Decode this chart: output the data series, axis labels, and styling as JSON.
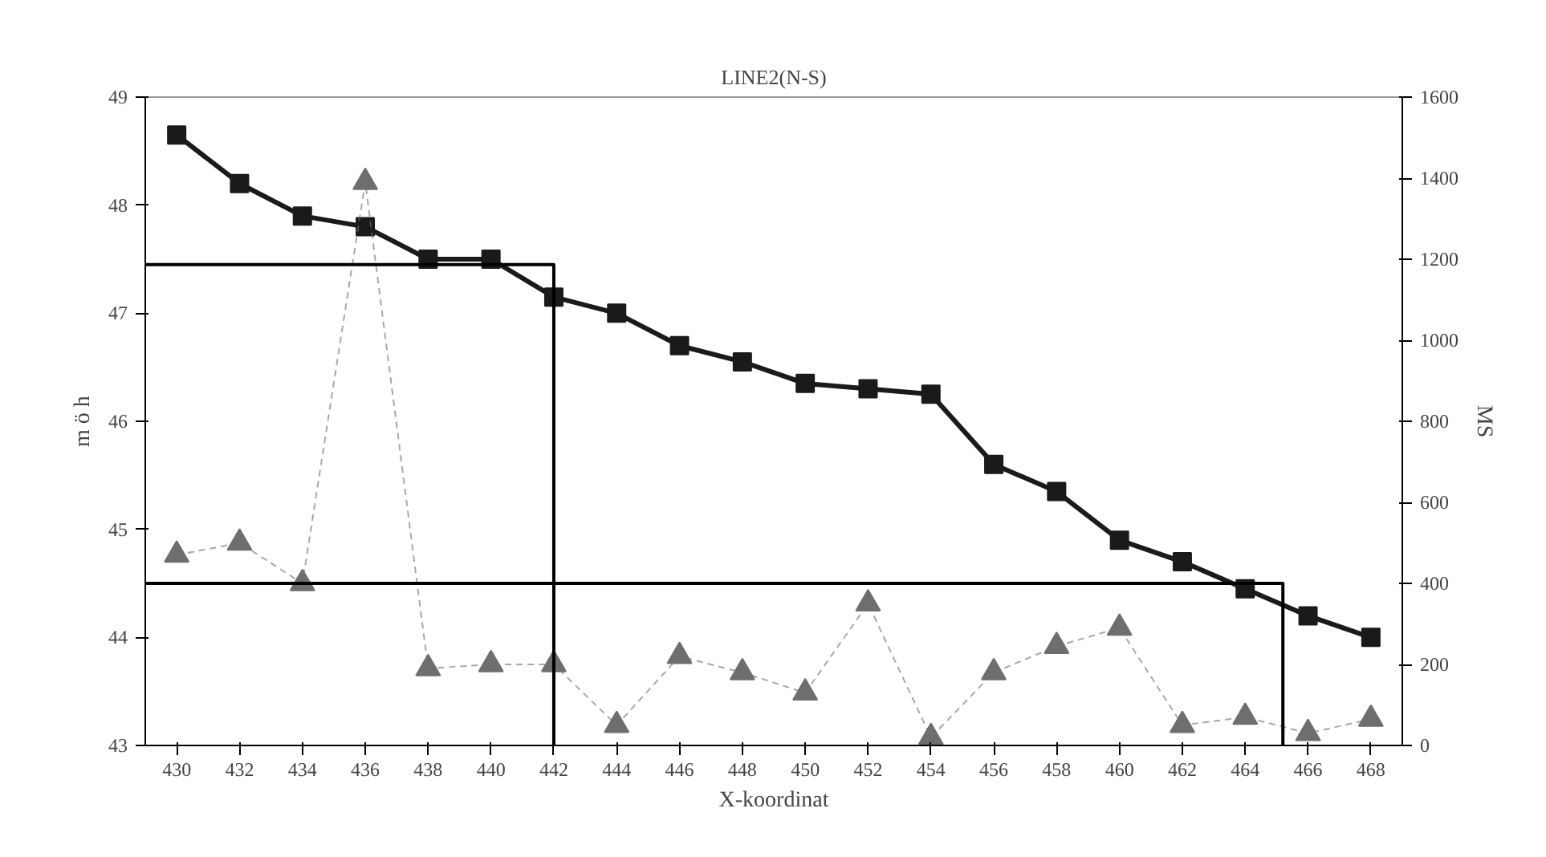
{
  "chart_data": {
    "type": "line",
    "title": "LINE2(N-S)",
    "xlabel": "X-koordinat",
    "ylabel": "m ö h",
    "y2label": "MS",
    "x": [
      430,
      432,
      434,
      436,
      438,
      440,
      442,
      444,
      446,
      448,
      450,
      452,
      454,
      456,
      458,
      460,
      462,
      464,
      466,
      468
    ],
    "xlim": [
      429,
      469
    ],
    "xticks": [
      430,
      432,
      434,
      436,
      438,
      440,
      442,
      444,
      446,
      448,
      450,
      452,
      454,
      456,
      458,
      460,
      462,
      464,
      466,
      468
    ],
    "ylim": [
      43,
      49
    ],
    "yticks": [
      43,
      44,
      45,
      46,
      47,
      48,
      49
    ],
    "y2lim": [
      0,
      1600
    ],
    "y2ticks": [
      0,
      200,
      400,
      600,
      800,
      1000,
      1200,
      1400,
      1600
    ],
    "grid": false,
    "series": [
      {
        "color": "#1a1a1a",
        "marker": "square",
        "line_style": "solid",
        "values": [
          48.65,
          48.2,
          47.9,
          47.8,
          47.5,
          47.5,
          47.15,
          47.0,
          46.7,
          46.55,
          46.35,
          46.3,
          46.25,
          45.6,
          45.35,
          44.9,
          44.7,
          44.45,
          44.2,
          44.0
        ]
      },
      {
        "color": "#6e6e6e",
        "marker": "triangle",
        "line_style": "dashed",
        "axis": "y2",
        "values": [
          470,
          500,
          400,
          1390,
          190,
          200,
          200,
          50,
          220,
          180,
          130,
          350,
          20,
          180,
          245,
          290,
          50,
          70,
          30,
          65
        ]
      },
      {
        "color": "#000000",
        "marker": "none",
        "line_style": "solid",
        "x": [
          429,
          442,
          442
        ],
        "values": [
          47.45,
          47.45,
          43
        ]
      },
      {
        "color": "#000000",
        "marker": "none",
        "line_style": "solid",
        "x": [
          429,
          465.2,
          465.2
        ],
        "values": [
          44.5,
          44.5,
          43
        ]
      }
    ]
  }
}
